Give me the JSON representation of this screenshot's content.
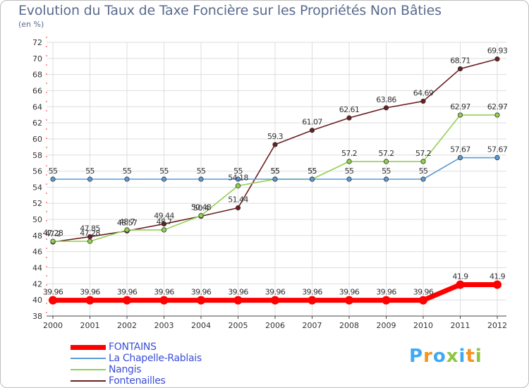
{
  "chart_data": {
    "type": "line",
    "title": "Evolution du Taux de Taxe Foncière sur les Propriétés Non Bâties",
    "subtitle": "(en %)",
    "xlabel": "",
    "ylabel": "",
    "x": [
      "2000",
      "2001",
      "2002",
      "2003",
      "2004",
      "2005",
      "2006",
      "2007",
      "2008",
      "2009",
      "2010",
      "2011",
      "2012"
    ],
    "ylim": [
      38,
      72
    ],
    "yticks": [
      38,
      40,
      42,
      44,
      46,
      48,
      50,
      52,
      54,
      56,
      58,
      60,
      62,
      64,
      66,
      68,
      70,
      72
    ],
    "grid": true,
    "legend_position": "bottom-left",
    "series": [
      {
        "name": "FONTAINS",
        "color": "#ff0000",
        "values": [
          39.96,
          39.96,
          39.96,
          39.96,
          39.96,
          39.96,
          39.96,
          39.96,
          39.96,
          39.96,
          39.96,
          41.9,
          41.9
        ],
        "labels": [
          "39.96",
          "39.96",
          "39.96",
          "39.96",
          "39.96",
          "39.96",
          "39.96",
          "39.96",
          "39.96",
          "39.96",
          "39.96",
          "41.9",
          "41.9"
        ]
      },
      {
        "name": "La Chapelle-Rablais",
        "color": "#5b9bd5",
        "values": [
          55,
          55,
          55,
          55,
          55,
          55,
          55,
          55,
          55,
          55,
          55,
          57.67,
          57.67
        ],
        "labels": [
          "55",
          "55",
          "55",
          "55",
          "55",
          "55",
          "55",
          "55",
          "55",
          "55",
          "55",
          "57.67",
          "57.67"
        ]
      },
      {
        "name": "Nangis",
        "color": "#92d050",
        "values": [
          47.28,
          47.28,
          48.7,
          48.7,
          50.48,
          54.18,
          55,
          55,
          57.2,
          57.2,
          57.2,
          62.97,
          62.97
        ],
        "labels": [
          "47.28",
          "47.28",
          "48.7",
          "48.7",
          "50.48",
          "54.18",
          "55",
          "55",
          "57.2",
          "57.2",
          "57.2",
          "62.97",
          "62.97"
        ]
      },
      {
        "name": "Fontenailles",
        "color": "#6b1f22",
        "values": [
          47.2,
          47.85,
          48.57,
          49.44,
          50.4,
          51.44,
          59.3,
          61.07,
          62.61,
          63.86,
          64.69,
          68.71,
          69.93
        ],
        "labels": [
          "47.2",
          "47.85",
          "48.57",
          "49.44",
          "50.4",
          "51.44",
          "59.3",
          "61.07",
          "62.61",
          "63.86",
          "64.69",
          "68.71",
          "69.93"
        ]
      }
    ]
  },
  "logo": {
    "text": "Proxiti",
    "letters": [
      "P",
      "r",
      "o",
      "x",
      "i",
      "t",
      "i"
    ],
    "colors": [
      "#3fa9f5",
      "#f7931e",
      "#3fa9f5",
      "#8cc63f",
      "#3fa9f5",
      "#f7931e",
      "#8cc63f"
    ]
  }
}
